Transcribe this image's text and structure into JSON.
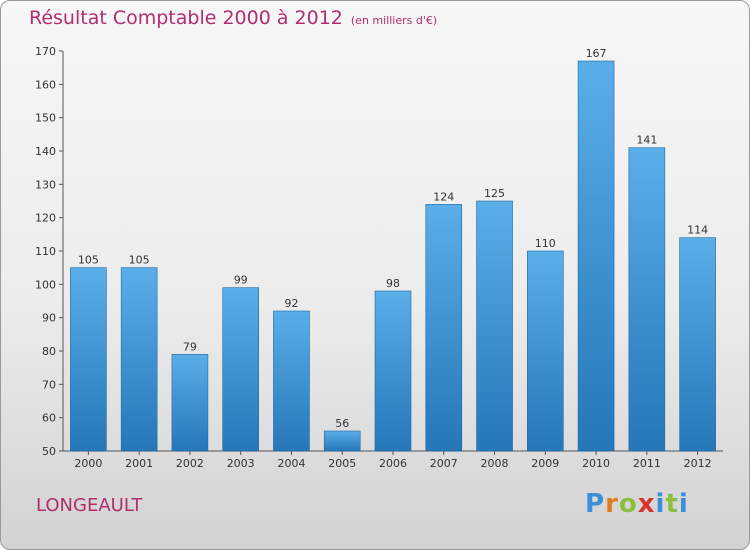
{
  "title": "Résultat Comptable 2000 à 2012",
  "unit_note": "(en milliers d'€)",
  "commune": "LONGEAULT",
  "logo": {
    "text": "Proxiti",
    "colors": [
      "#3b8fd6",
      "#e07b22",
      "#8cbf3f",
      "#d7342f",
      "#3b8fd6",
      "#8cbf3f",
      "#3b8fd6"
    ]
  },
  "colors": {
    "title": "#b22d6e",
    "bar_top": "#5aaee8",
    "bar_bottom": "#2577b8"
  },
  "chart_data": {
    "type": "bar",
    "title": "Résultat Comptable 2000 à 2012",
    "xlabel": "",
    "ylabel": "",
    "categories": [
      "2000",
      "2001",
      "2002",
      "2003",
      "2004",
      "2005",
      "2006",
      "2007",
      "2008",
      "2009",
      "2010",
      "2011",
      "2012"
    ],
    "values": [
      105,
      105,
      79,
      99,
      92,
      56,
      98,
      124,
      125,
      110,
      167,
      141,
      114
    ],
    "ylim": [
      50,
      170
    ],
    "yticks": [
      50,
      60,
      70,
      80,
      90,
      100,
      110,
      120,
      130,
      140,
      150,
      160,
      170
    ],
    "grid": false,
    "data_labels": true
  }
}
